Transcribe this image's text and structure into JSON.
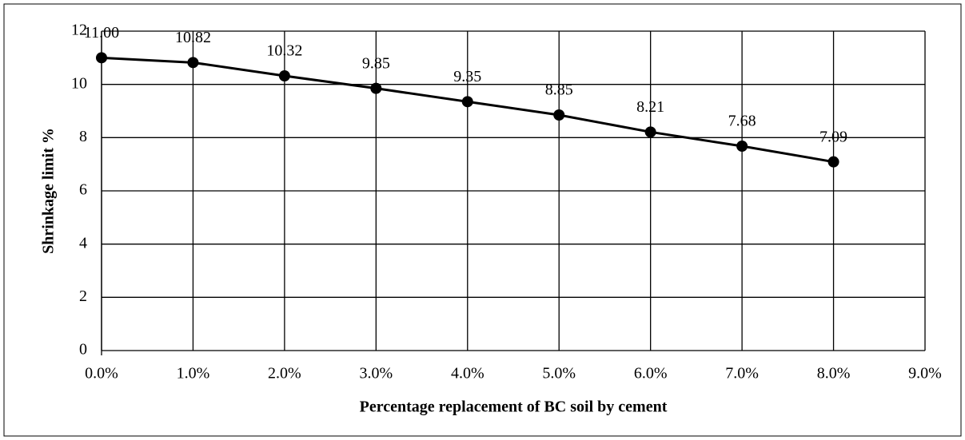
{
  "chart_data": {
    "type": "line",
    "x_label": "Percentage replacement of BC soil by cement",
    "y_label": "Shrinkage limit %",
    "x": [
      0,
      1,
      2,
      3,
      4,
      5,
      6,
      7,
      8
    ],
    "series": [
      {
        "color": "#000000",
        "values": [
          11,
          10.82,
          10.32,
          9.85,
          9.35,
          8.85,
          8.21,
          7.68,
          7.09
        ],
        "value_labels": [
          "11.00",
          "10.82",
          "10.32",
          "9.85",
          "9.35",
          "8.85",
          "8.21",
          "7.68",
          "7.09"
        ]
      }
    ],
    "xlim": [
      0,
      9
    ],
    "xticks": [
      {
        "value": 0,
        "label": "0.0%"
      },
      {
        "value": 1,
        "label": "1.0%"
      },
      {
        "value": 2,
        "label": "2.0%"
      },
      {
        "value": 3,
        "label": "3.0%"
      },
      {
        "value": 4,
        "label": "4.0%"
      },
      {
        "value": 5,
        "label": "5.0%"
      },
      {
        "value": 6,
        "label": "6.0%"
      },
      {
        "value": 7,
        "label": "7.0%"
      },
      {
        "value": 8,
        "label": "8.0%"
      },
      {
        "value": 9,
        "label": "9.0%"
      }
    ],
    "ylim": [
      0,
      12
    ],
    "yticks": [
      0,
      2,
      4,
      6,
      8,
      10,
      12
    ],
    "grid": true
  }
}
